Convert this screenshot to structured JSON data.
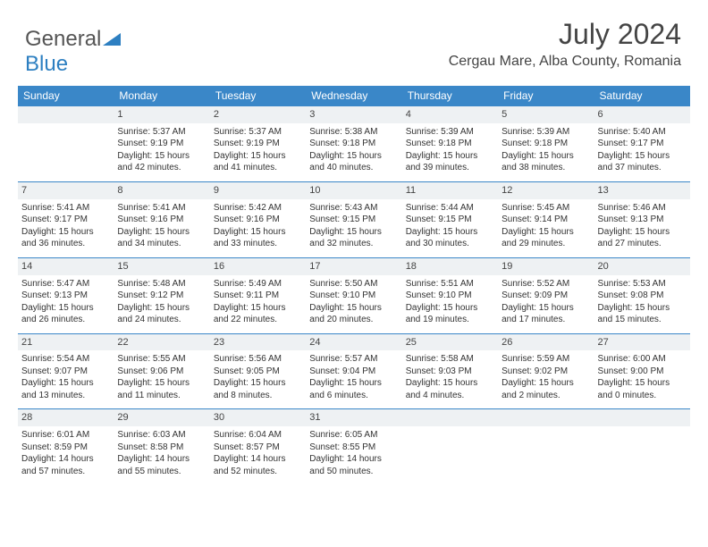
{
  "logo": {
    "word1": "General",
    "word2": "Blue"
  },
  "header": {
    "title": "July 2024",
    "subtitle": "Cergau Mare, Alba County, Romania"
  },
  "calendar": {
    "colors": {
      "header_bg": "#3a87c8",
      "header_fg": "#ffffff",
      "daynum_bg": "#eef1f3",
      "border": "#3a87c8",
      "text": "#333333",
      "background": "#ffffff"
    },
    "day_names": [
      "Sunday",
      "Monday",
      "Tuesday",
      "Wednesday",
      "Thursday",
      "Friday",
      "Saturday"
    ],
    "first_weekday_index": 1,
    "days": [
      {
        "n": 1,
        "sunrise": "5:37 AM",
        "sunset": "9:19 PM",
        "daylight": "15 hours and 42 minutes."
      },
      {
        "n": 2,
        "sunrise": "5:37 AM",
        "sunset": "9:19 PM",
        "daylight": "15 hours and 41 minutes."
      },
      {
        "n": 3,
        "sunrise": "5:38 AM",
        "sunset": "9:18 PM",
        "daylight": "15 hours and 40 minutes."
      },
      {
        "n": 4,
        "sunrise": "5:39 AM",
        "sunset": "9:18 PM",
        "daylight": "15 hours and 39 minutes."
      },
      {
        "n": 5,
        "sunrise": "5:39 AM",
        "sunset": "9:18 PM",
        "daylight": "15 hours and 38 minutes."
      },
      {
        "n": 6,
        "sunrise": "5:40 AM",
        "sunset": "9:17 PM",
        "daylight": "15 hours and 37 minutes."
      },
      {
        "n": 7,
        "sunrise": "5:41 AM",
        "sunset": "9:17 PM",
        "daylight": "15 hours and 36 minutes."
      },
      {
        "n": 8,
        "sunrise": "5:41 AM",
        "sunset": "9:16 PM",
        "daylight": "15 hours and 34 minutes."
      },
      {
        "n": 9,
        "sunrise": "5:42 AM",
        "sunset": "9:16 PM",
        "daylight": "15 hours and 33 minutes."
      },
      {
        "n": 10,
        "sunrise": "5:43 AM",
        "sunset": "9:15 PM",
        "daylight": "15 hours and 32 minutes."
      },
      {
        "n": 11,
        "sunrise": "5:44 AM",
        "sunset": "9:15 PM",
        "daylight": "15 hours and 30 minutes."
      },
      {
        "n": 12,
        "sunrise": "5:45 AM",
        "sunset": "9:14 PM",
        "daylight": "15 hours and 29 minutes."
      },
      {
        "n": 13,
        "sunrise": "5:46 AM",
        "sunset": "9:13 PM",
        "daylight": "15 hours and 27 minutes."
      },
      {
        "n": 14,
        "sunrise": "5:47 AM",
        "sunset": "9:13 PM",
        "daylight": "15 hours and 26 minutes."
      },
      {
        "n": 15,
        "sunrise": "5:48 AM",
        "sunset": "9:12 PM",
        "daylight": "15 hours and 24 minutes."
      },
      {
        "n": 16,
        "sunrise": "5:49 AM",
        "sunset": "9:11 PM",
        "daylight": "15 hours and 22 minutes."
      },
      {
        "n": 17,
        "sunrise": "5:50 AM",
        "sunset": "9:10 PM",
        "daylight": "15 hours and 20 minutes."
      },
      {
        "n": 18,
        "sunrise": "5:51 AM",
        "sunset": "9:10 PM",
        "daylight": "15 hours and 19 minutes."
      },
      {
        "n": 19,
        "sunrise": "5:52 AM",
        "sunset": "9:09 PM",
        "daylight": "15 hours and 17 minutes."
      },
      {
        "n": 20,
        "sunrise": "5:53 AM",
        "sunset": "9:08 PM",
        "daylight": "15 hours and 15 minutes."
      },
      {
        "n": 21,
        "sunrise": "5:54 AM",
        "sunset": "9:07 PM",
        "daylight": "15 hours and 13 minutes."
      },
      {
        "n": 22,
        "sunrise": "5:55 AM",
        "sunset": "9:06 PM",
        "daylight": "15 hours and 11 minutes."
      },
      {
        "n": 23,
        "sunrise": "5:56 AM",
        "sunset": "9:05 PM",
        "daylight": "15 hours and 8 minutes."
      },
      {
        "n": 24,
        "sunrise": "5:57 AM",
        "sunset": "9:04 PM",
        "daylight": "15 hours and 6 minutes."
      },
      {
        "n": 25,
        "sunrise": "5:58 AM",
        "sunset": "9:03 PM",
        "daylight": "15 hours and 4 minutes."
      },
      {
        "n": 26,
        "sunrise": "5:59 AM",
        "sunset": "9:02 PM",
        "daylight": "15 hours and 2 minutes."
      },
      {
        "n": 27,
        "sunrise": "6:00 AM",
        "sunset": "9:00 PM",
        "daylight": "15 hours and 0 minutes."
      },
      {
        "n": 28,
        "sunrise": "6:01 AM",
        "sunset": "8:59 PM",
        "daylight": "14 hours and 57 minutes."
      },
      {
        "n": 29,
        "sunrise": "6:03 AM",
        "sunset": "8:58 PM",
        "daylight": "14 hours and 55 minutes."
      },
      {
        "n": 30,
        "sunrise": "6:04 AM",
        "sunset": "8:57 PM",
        "daylight": "14 hours and 52 minutes."
      },
      {
        "n": 31,
        "sunrise": "6:05 AM",
        "sunset": "8:55 PM",
        "daylight": "14 hours and 50 minutes."
      }
    ],
    "labels": {
      "sunrise": "Sunrise:",
      "sunset": "Sunset:",
      "daylight": "Daylight:"
    }
  }
}
